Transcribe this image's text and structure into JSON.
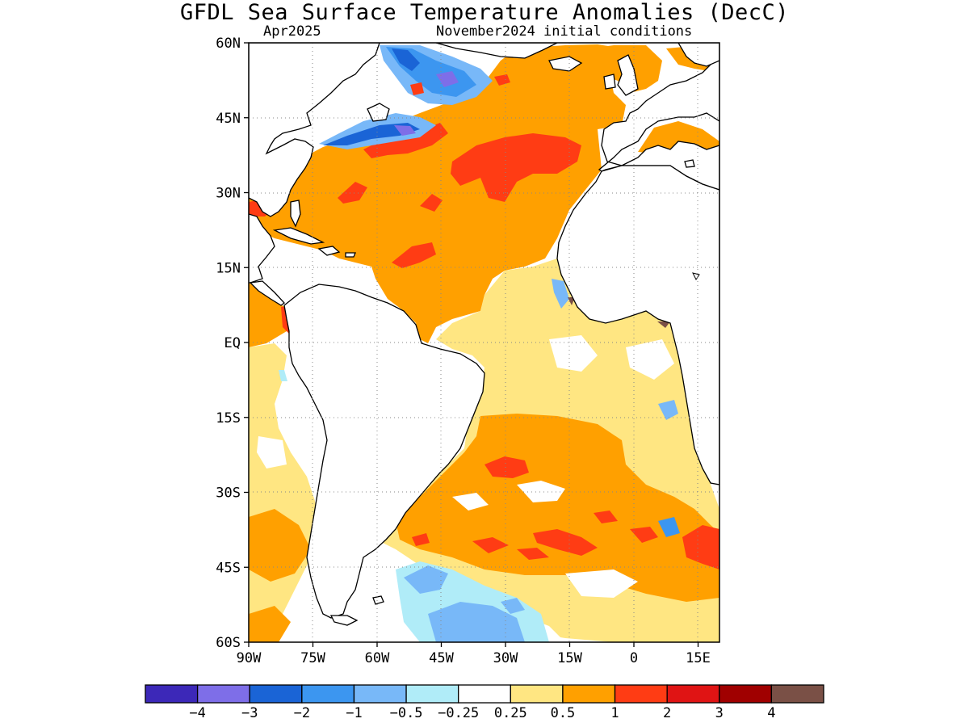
{
  "title": "GFDL Sea Surface Temperature Anomalies (DecC)",
  "subtitle_left": "Apr2025",
  "subtitle_right": "November2024 initial conditions",
  "map": {
    "lon_range": [
      -90,
      20
    ],
    "lat_range": [
      -60,
      60
    ],
    "lat_ticks": [
      {
        "value": 60,
        "label": "60N"
      },
      {
        "value": 45,
        "label": "45N"
      },
      {
        "value": 30,
        "label": "30N"
      },
      {
        "value": 15,
        "label": "15N"
      },
      {
        "value": 0,
        "label": "EQ"
      },
      {
        "value": -15,
        "label": "15S"
      },
      {
        "value": -30,
        "label": "30S"
      },
      {
        "value": -45,
        "label": "45S"
      },
      {
        "value": -60,
        "label": "60S"
      }
    ],
    "lon_ticks": [
      {
        "value": -90,
        "label": "90W"
      },
      {
        "value": -75,
        "label": "75W"
      },
      {
        "value": -60,
        "label": "60W"
      },
      {
        "value": -45,
        "label": "45W"
      },
      {
        "value": -30,
        "label": "30W"
      },
      {
        "value": -15,
        "label": "15W"
      },
      {
        "value": 0,
        "label": "0"
      },
      {
        "value": 15,
        "label": "15E"
      }
    ],
    "grid": "dotted",
    "land_color": "#ffffff"
  },
  "colorbar": {
    "colors": [
      "#3c28b8",
      "#7e6ee8",
      "#1a64d6",
      "#3c96f0",
      "#78b8f8",
      "#b0ecf8",
      "#ffffff",
      "#ffe682",
      "#ffa000",
      "#ff3c14",
      "#e01414",
      "#a00000",
      "#7a5046"
    ],
    "labels": [
      "-4",
      "-3",
      "-2",
      "-1",
      "-0.5",
      "-0.25",
      "0.25",
      "0.5",
      "1",
      "2",
      "3",
      "4"
    ]
  }
}
